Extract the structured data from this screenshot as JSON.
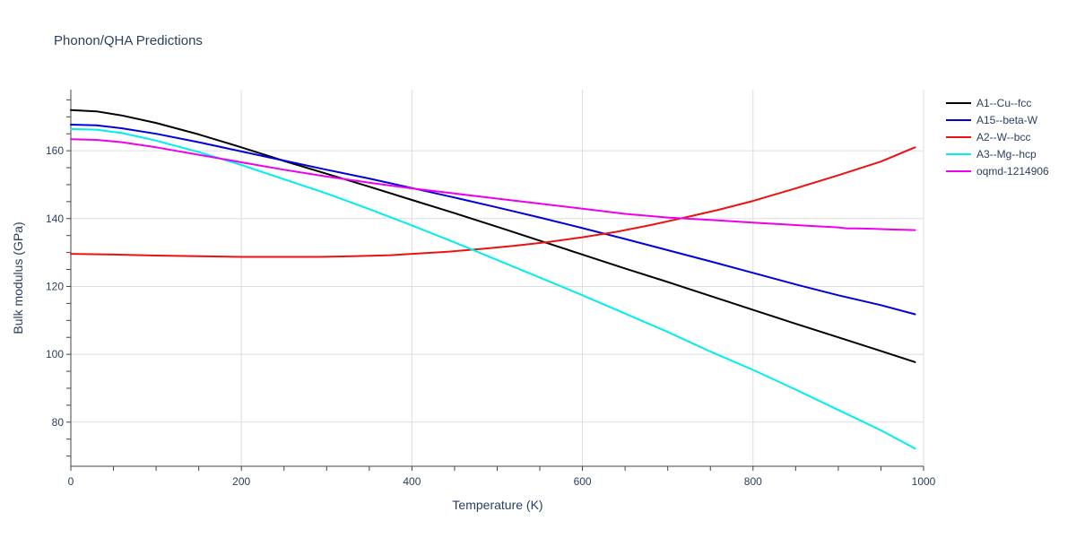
{
  "chart_data": {
    "type": "line",
    "title": "Phonon/QHA Predictions",
    "xlabel": "Temperature (K)",
    "ylabel": "Bulk modulus (GPa)",
    "xlim": [
      0,
      1000
    ],
    "ylim": [
      67,
      178
    ],
    "x_ticks": [
      0,
      200,
      400,
      600,
      800,
      1000
    ],
    "y_ticks": [
      80,
      100,
      120,
      140,
      160
    ],
    "x_tick_labels": [
      "0",
      "200",
      "400",
      "600",
      "800",
      "1000"
    ],
    "y_tick_labels": [
      "80",
      "100",
      "120",
      "140",
      "160"
    ],
    "grid": true,
    "legend_position": "top-right",
    "series": [
      {
        "name": "A1--Cu--fcc",
        "color": "#000000",
        "x": [
          0,
          30,
          60,
          100,
          150,
          200,
          250,
          300,
          350,
          400,
          450,
          500,
          550,
          600,
          650,
          700,
          750,
          800,
          850,
          900,
          950,
          990
        ],
        "y": [
          172.0,
          171.6,
          170.4,
          168.2,
          164.8,
          161.0,
          157.0,
          153.2,
          149.4,
          145.5,
          141.6,
          137.6,
          133.5,
          129.4,
          125.3,
          121.3,
          117.2,
          113.1,
          109.0,
          105.0,
          101.0,
          97.7
        ]
      },
      {
        "name": "A15--beta-W",
        "color": "#0000dd",
        "x": [
          0,
          30,
          60,
          100,
          150,
          200,
          250,
          300,
          350,
          400,
          450,
          500,
          550,
          600,
          650,
          700,
          750,
          800,
          850,
          900,
          950,
          990
        ],
        "y": [
          167.7,
          167.5,
          166.6,
          165.0,
          162.5,
          159.8,
          157.1,
          154.4,
          151.8,
          149.0,
          146.2,
          143.3,
          140.3,
          137.2,
          134.0,
          130.7,
          127.4,
          124.0,
          120.6,
          117.4,
          114.5,
          111.8
        ]
      },
      {
        "name": "A2--W--bcc",
        "color": "#ee1111",
        "x": [
          0,
          50,
          100,
          150,
          200,
          250,
          290,
          330,
          375,
          400,
          440,
          480,
          520,
          560,
          600,
          640,
          680,
          720,
          760,
          800,
          850,
          900,
          950,
          990
        ],
        "y": [
          129.6,
          129.4,
          129.1,
          128.9,
          128.7,
          128.7,
          128.7,
          128.9,
          129.2,
          129.6,
          130.2,
          131.0,
          132.0,
          133.1,
          134.5,
          136.1,
          138.1,
          140.3,
          142.6,
          145.2,
          148.9,
          152.8,
          156.8,
          161.0
        ]
      },
      {
        "name": "A3--Mg--hcp",
        "color": "#00eeee",
        "x": [
          0,
          30,
          60,
          100,
          150,
          200,
          250,
          300,
          350,
          400,
          450,
          500,
          550,
          600,
          650,
          700,
          750,
          800,
          850,
          900,
          950,
          990
        ],
        "y": [
          166.4,
          166.2,
          165.2,
          163.0,
          159.6,
          155.8,
          151.6,
          147.4,
          142.8,
          138.0,
          133.0,
          127.8,
          122.6,
          117.4,
          112.0,
          106.6,
          100.8,
          95.4,
          89.6,
          83.6,
          77.6,
          72.2
        ]
      },
      {
        "name": "oqmd-1214906",
        "color": "#ee00ee",
        "x": [
          0,
          30,
          60,
          100,
          150,
          200,
          250,
          300,
          350,
          400,
          450,
          500,
          550,
          600,
          650,
          700,
          750,
          800,
          850,
          900,
          910,
          920,
          940,
          960,
          990
        ],
        "y": [
          163.4,
          163.2,
          162.5,
          161.0,
          158.8,
          156.6,
          154.4,
          152.4,
          150.6,
          148.9,
          147.4,
          145.9,
          144.4,
          142.9,
          141.4,
          140.3,
          139.6,
          138.8,
          138.1,
          137.4,
          137.1,
          137.1,
          137.0,
          136.8,
          136.6
        ]
      }
    ]
  }
}
